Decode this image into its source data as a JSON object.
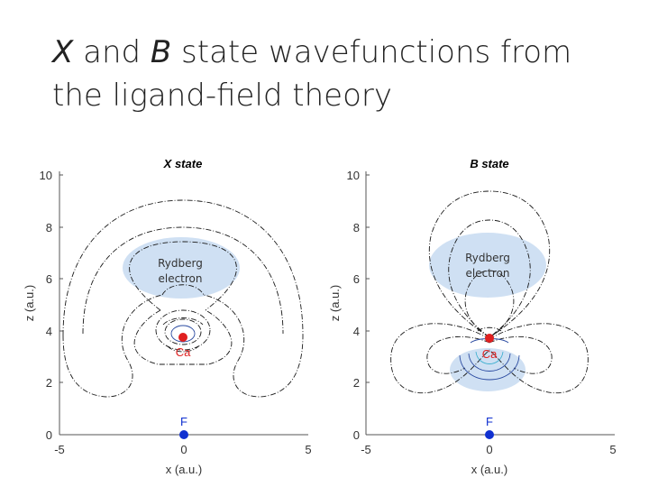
{
  "title": {
    "line1_sym1": "X",
    "line1_mid": " and ",
    "line1_sym2": "B",
    "line1_rest": " state wavefunctions from",
    "line2": "the ligand-field theory"
  },
  "panels": [
    {
      "title": "X state",
      "annotation": [
        "Rydberg",
        "electron"
      ],
      "atom_top": "Ca",
      "atom_bottom": "F",
      "xlabel": "x (a.u.)",
      "ylabel": "z (a.u.)",
      "xticks": [
        "-5",
        "0",
        "5"
      ],
      "yticks": [
        "0",
        "2",
        "4",
        "6",
        "8",
        "10"
      ]
    },
    {
      "title": "B state",
      "annotation": [
        "Rydberg",
        "electron"
      ],
      "atom_top": "Ca",
      "atom_bottom": "F",
      "xlabel": "x (a.u.)",
      "ylabel": "z (a.u.)",
      "xticks": [
        "-5",
        "0",
        "5"
      ],
      "yticks": [
        "0",
        "2",
        "4",
        "6",
        "8",
        "10"
      ]
    }
  ],
  "colors": {
    "ca": "#e02020",
    "f": "#1030d0",
    "highlight": "#cfe0f3"
  }
}
